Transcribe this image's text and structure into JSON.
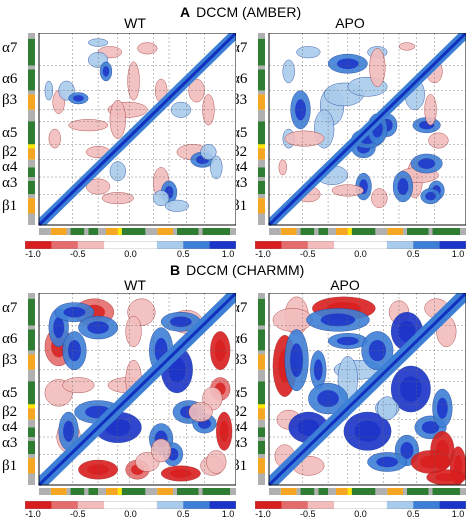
{
  "colors": {
    "strong_pos": "#1a33c8",
    "mid_pos": "#3d7fd6",
    "weak_pos": "#a9cbec",
    "weak_neg": "#f2bcbc",
    "mid_neg": "#e46c6c",
    "strong_neg": "#d81e1e",
    "diagonal": "#1030c0",
    "ss_helix": "#2e7d32",
    "ss_sheet": "#f5a623",
    "ss_loop": "#b0b0b0",
    "ss_accent": "#ffe600"
  },
  "chart_data": [
    {
      "type": "heatmap",
      "section": "A",
      "section_title": "DCCM (AMBER)",
      "title": "WT",
      "variant": "amber_wt",
      "colorbar_ticks": [
        "-1.0",
        "-0.5",
        "0.0",
        "0.5",
        "1.0"
      ],
      "zlim": [
        -1.0,
        1.0
      ],
      "ss_labels": [
        "α7",
        "α6",
        "β3",
        "α5",
        "β2",
        "α4",
        "α3",
        "β1"
      ]
    },
    {
      "type": "heatmap",
      "section": "A",
      "title": "APO",
      "variant": "amber_apo",
      "colorbar_ticks": [
        "-1.0",
        "-0.5",
        "0.0",
        "0.5",
        "1.0"
      ],
      "zlim": [
        -1.0,
        1.0
      ],
      "ss_labels": [
        "α7",
        "α6",
        "β3",
        "α5",
        "β2",
        "α4",
        "α3",
        "β1"
      ]
    },
    {
      "type": "heatmap",
      "section": "B",
      "section_title": "DCCM (CHARMM)",
      "title": "WT",
      "variant": "charmm_wt",
      "colorbar_ticks": [
        "-1.0",
        "-0.5",
        "0.0",
        "0.5",
        "1.0"
      ],
      "zlim": [
        -1.0,
        1.0
      ],
      "ss_labels": [
        "α7",
        "α6",
        "β3",
        "α5",
        "β2",
        "α4",
        "α3",
        "β1"
      ]
    },
    {
      "type": "heatmap",
      "section": "B",
      "title": "APO",
      "variant": "charmm_apo",
      "colorbar_ticks": [
        "-1.0",
        "-0.5",
        "0.0",
        "0.5",
        "1.0"
      ],
      "zlim": [
        -1.0,
        1.0
      ],
      "ss_labels": [
        "α7",
        "α6",
        "β3",
        "α5",
        "β2",
        "α4",
        "α3",
        "β1"
      ]
    }
  ]
}
